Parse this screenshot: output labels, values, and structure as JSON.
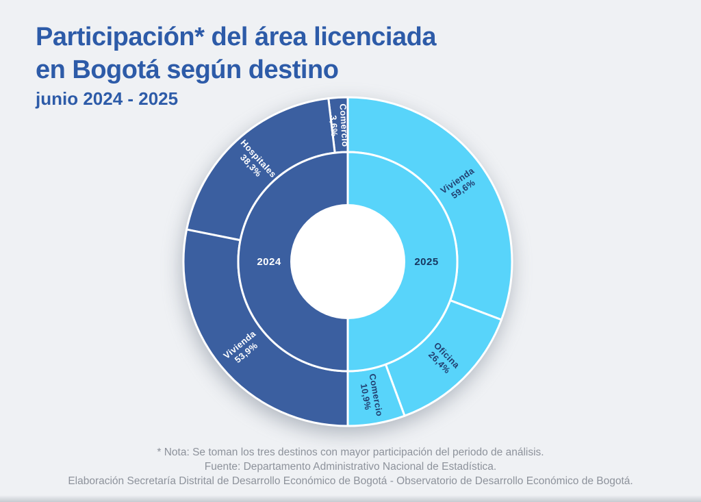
{
  "header": {
    "title_lines": [
      "Participación* del área licenciada",
      "en Bogotá según destino"
    ],
    "subtitle": "junio 2024 - 2025",
    "title_color": "#2d5ba8"
  },
  "chart_data": {
    "type": "pie",
    "variant": "split-double-donut",
    "title": "Participación* del área licenciada en Bogotá según destino",
    "subtitle": "junio 2024 - 2025",
    "units": "%",
    "hole_color": "#ffffff",
    "divider_color": "#ffffff",
    "halves": [
      {
        "year": "2024",
        "side": "left",
        "ring_color": "#3b5fa0",
        "label_color": "#ffffff",
        "year_label_color": "#ffffff",
        "segments": [
          {
            "label": "Comercio",
            "value": 3.6,
            "display": "3,6%"
          },
          {
            "label": "Hospitales",
            "value": 38.3,
            "display": "38,3%"
          },
          {
            "label": "Vivienda",
            "value": 53.9,
            "display": "53,9%"
          }
        ]
      },
      {
        "year": "2025",
        "side": "right",
        "ring_color": "#58d4fa",
        "label_color": "#223f70",
        "year_label_color": "#17365f",
        "segments": [
          {
            "label": "Vivienda",
            "value": 59.6,
            "display": "59,6%"
          },
          {
            "label": "Oficina",
            "value": 26.4,
            "display": "26,4%"
          },
          {
            "label": "Comercio",
            "value": 10.9,
            "display": "10,9%"
          }
        ]
      }
    ]
  },
  "footer": {
    "note": "* Nota: Se toman los tres destinos con mayor participación del periodo de análisis.",
    "source": "Fuente: Departamento Administrativo Nacional de Estadística.",
    "elaboration": "Elaboración Secretaría Distrital de Desarrollo Económico de Bogotá - Observatorio de Desarrollo Económico de Bogotá."
  }
}
